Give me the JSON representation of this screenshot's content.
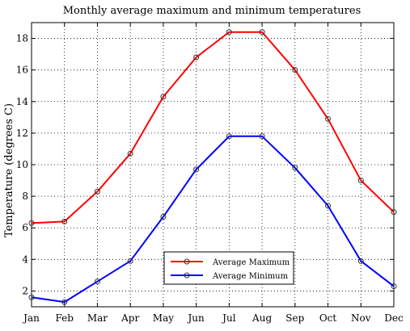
{
  "chart_data": {
    "type": "line",
    "title": "Monthly average maximum and minimum temperatures",
    "xlabel": "",
    "ylabel": "Temperature (degrees C)",
    "categories": [
      "Jan",
      "Feb",
      "Mar",
      "Apr",
      "May",
      "Jun",
      "Jul",
      "Aug",
      "Sep",
      "Oct",
      "Nov",
      "Dec"
    ],
    "ylim": [
      1,
      19
    ],
    "yticks": [
      2,
      4,
      6,
      8,
      10,
      12,
      14,
      16,
      18
    ],
    "grid": true,
    "legend_position": "bottom-center",
    "series": [
      {
        "name": "Average Maximum",
        "color": "#ff0000",
        "marker": "circle",
        "values": [
          6.3,
          6.4,
          8.3,
          10.7,
          14.3,
          16.8,
          18.4,
          18.4,
          16.0,
          12.9,
          9.0,
          7.0
        ]
      },
      {
        "name": "Average Minimum",
        "color": "#0000ff",
        "marker": "circle",
        "values": [
          1.6,
          1.3,
          2.6,
          3.9,
          6.7,
          9.7,
          11.8,
          11.8,
          9.8,
          7.4,
          3.9,
          2.3
        ]
      }
    ]
  }
}
